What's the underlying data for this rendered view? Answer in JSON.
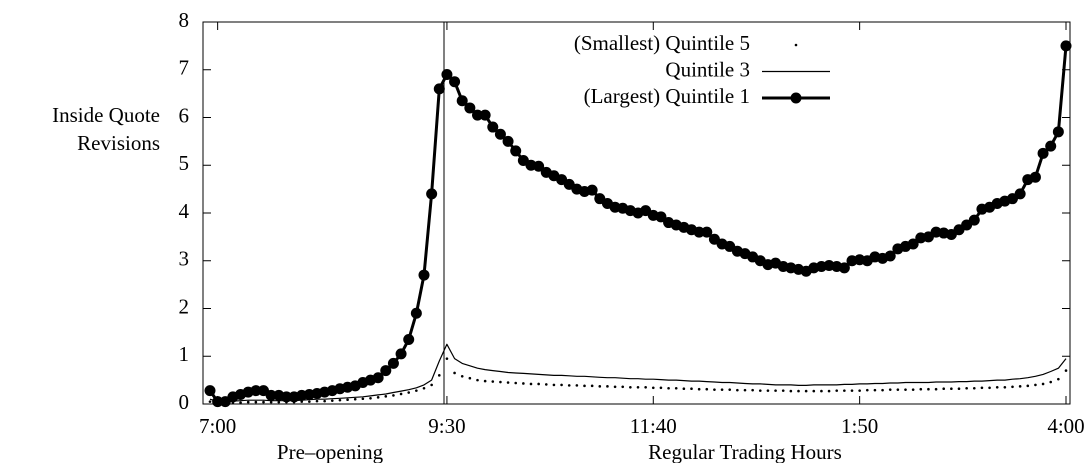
{
  "chart_data": {
    "type": "line",
    "ylabel": [
      "Inside Quote",
      "Revisions"
    ],
    "x_sections": [
      "Pre–opening",
      "Regular Trading Hours"
    ],
    "categories": [
      null,
      "7:00",
      null,
      null,
      null,
      null,
      null,
      null,
      null,
      null,
      null,
      null,
      null,
      null,
      null,
      null,
      null,
      null,
      null,
      null,
      null,
      null,
      null,
      null,
      null,
      null,
      null,
      null,
      null,
      null,
      null,
      "9:30",
      null,
      null,
      null,
      null,
      null,
      null,
      null,
      null,
      null,
      null,
      null,
      null,
      null,
      null,
      null,
      null,
      null,
      null,
      null,
      null,
      null,
      null,
      null,
      null,
      null,
      null,
      "11:40",
      null,
      null,
      null,
      null,
      null,
      null,
      null,
      null,
      null,
      null,
      null,
      null,
      null,
      null,
      null,
      null,
      null,
      null,
      null,
      null,
      null,
      null,
      null,
      null,
      null,
      null,
      "1:50",
      null,
      null,
      null,
      null,
      null,
      null,
      null,
      null,
      null,
      null,
      null,
      null,
      null,
      null,
      null,
      null,
      null,
      null,
      null,
      null,
      null,
      null,
      null,
      null,
      null,
      null,
      "4:00"
    ],
    "series": [
      {
        "name": "(Smallest) Quintile 5",
        "color": "#000000",
        "style": "dots",
        "values": [
          0.05,
          0.02,
          0.02,
          0.03,
          0.03,
          0.04,
          0.04,
          0.04,
          0.04,
          0.04,
          0.04,
          0.04,
          0.05,
          0.05,
          0.06,
          0.06,
          0.07,
          0.08,
          0.09,
          0.1,
          0.11,
          0.12,
          0.14,
          0.16,
          0.18,
          0.21,
          0.24,
          0.28,
          0.33,
          0.4,
          0.6,
          0.95,
          0.65,
          0.58,
          0.54,
          0.5,
          0.48,
          0.47,
          0.46,
          0.45,
          0.44,
          0.43,
          0.42,
          0.42,
          0.41,
          0.4,
          0.4,
          0.39,
          0.39,
          0.38,
          0.38,
          0.37,
          0.37,
          0.36,
          0.36,
          0.35,
          0.35,
          0.35,
          0.34,
          0.34,
          0.33,
          0.33,
          0.32,
          0.32,
          0.31,
          0.31,
          0.3,
          0.3,
          0.3,
          0.29,
          0.29,
          0.29,
          0.28,
          0.28,
          0.28,
          0.28,
          0.27,
          0.27,
          0.27,
          0.27,
          0.27,
          0.27,
          0.28,
          0.28,
          0.28,
          0.28,
          0.29,
          0.29,
          0.29,
          0.3,
          0.3,
          0.3,
          0.3,
          0.31,
          0.31,
          0.31,
          0.32,
          0.32,
          0.32,
          0.33,
          0.33,
          0.34,
          0.34,
          0.35,
          0.35,
          0.36,
          0.37,
          0.38,
          0.4,
          0.42,
          0.46,
          0.52,
          0.7
        ]
      },
      {
        "name": "Quintile 3",
        "color": "#000000",
        "style": "line",
        "values": [
          0.1,
          0.05,
          0.05,
          0.06,
          0.07,
          0.08,
          0.08,
          0.08,
          0.07,
          0.07,
          0.07,
          0.07,
          0.08,
          0.09,
          0.1,
          0.1,
          0.11,
          0.12,
          0.13,
          0.14,
          0.15,
          0.17,
          0.19,
          0.21,
          0.24,
          0.27,
          0.3,
          0.34,
          0.4,
          0.5,
          0.9,
          1.25,
          0.95,
          0.85,
          0.8,
          0.75,
          0.72,
          0.7,
          0.68,
          0.66,
          0.65,
          0.64,
          0.63,
          0.62,
          0.61,
          0.6,
          0.6,
          0.59,
          0.58,
          0.58,
          0.57,
          0.56,
          0.55,
          0.55,
          0.54,
          0.53,
          0.53,
          0.52,
          0.52,
          0.51,
          0.5,
          0.5,
          0.49,
          0.48,
          0.48,
          0.47,
          0.46,
          0.45,
          0.45,
          0.44,
          0.43,
          0.42,
          0.42,
          0.41,
          0.4,
          0.4,
          0.4,
          0.39,
          0.39,
          0.4,
          0.4,
          0.4,
          0.4,
          0.41,
          0.41,
          0.42,
          0.42,
          0.43,
          0.43,
          0.44,
          0.44,
          0.45,
          0.45,
          0.45,
          0.45,
          0.46,
          0.46,
          0.46,
          0.47,
          0.47,
          0.48,
          0.48,
          0.49,
          0.5,
          0.5,
          0.52,
          0.53,
          0.55,
          0.58,
          0.62,
          0.68,
          0.75,
          0.95
        ]
      },
      {
        "name": "(Largest) Quintile 1",
        "color": "#000000",
        "style": "linepoints",
        "values": [
          0.28,
          0.05,
          0.05,
          0.15,
          0.2,
          0.25,
          0.28,
          0.28,
          0.18,
          0.18,
          0.15,
          0.15,
          0.18,
          0.2,
          0.22,
          0.25,
          0.28,
          0.32,
          0.35,
          0.38,
          0.45,
          0.5,
          0.55,
          0.7,
          0.85,
          1.05,
          1.35,
          1.9,
          2.7,
          4.4,
          6.6,
          6.9,
          6.75,
          6.35,
          6.2,
          6.05,
          6.05,
          5.8,
          5.65,
          5.5,
          5.3,
          5.1,
          5.0,
          4.98,
          4.85,
          4.78,
          4.7,
          4.6,
          4.5,
          4.45,
          4.48,
          4.3,
          4.2,
          4.12,
          4.1,
          4.05,
          4.0,
          4.05,
          3.95,
          3.92,
          3.8,
          3.75,
          3.7,
          3.65,
          3.6,
          3.6,
          3.45,
          3.35,
          3.3,
          3.2,
          3.15,
          3.08,
          3.0,
          2.92,
          2.95,
          2.88,
          2.85,
          2.82,
          2.78,
          2.85,
          2.88,
          2.9,
          2.88,
          2.85,
          3.0,
          3.02,
          3.0,
          3.08,
          3.05,
          3.1,
          3.25,
          3.3,
          3.35,
          3.48,
          3.5,
          3.6,
          3.58,
          3.55,
          3.65,
          3.75,
          3.85,
          4.08,
          4.12,
          4.2,
          4.25,
          4.3,
          4.4,
          4.7,
          4.75,
          5.25,
          5.4,
          5.7,
          7.5
        ]
      }
    ],
    "ylim": [
      0,
      8
    ],
    "yticks": [
      0,
      1,
      2,
      3,
      4,
      5,
      6,
      7,
      8
    ],
    "legend": "top-right"
  }
}
